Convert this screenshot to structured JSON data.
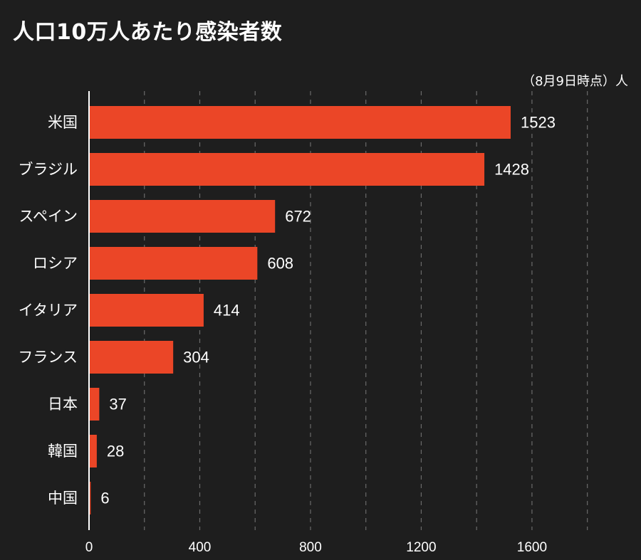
{
  "header": {
    "title": "人口10万人あたり感染者数",
    "note": "（8月9日時点）人"
  },
  "colors": {
    "background": "#1e1e1e",
    "bar": "#eb4627",
    "axis": "#ffffff",
    "grid": "#6a6a6a"
  },
  "chart_data": {
    "type": "bar",
    "orientation": "horizontal",
    "title": "人口10万人あたり感染者数",
    "unit_note": "（8月9日時点）人",
    "categories": [
      "米国",
      "ブラジル",
      "スペイン",
      "ロシア",
      "イタリア",
      "フランス",
      "日本",
      "韓国",
      "中国"
    ],
    "values": [
      1523,
      1428,
      672,
      608,
      414,
      304,
      37,
      28,
      6
    ],
    "xlim": [
      0,
      1800
    ],
    "xticks": [
      0,
      400,
      800,
      1200,
      1600
    ],
    "grid_every": 200,
    "xlabel": "",
    "ylabel": ""
  }
}
